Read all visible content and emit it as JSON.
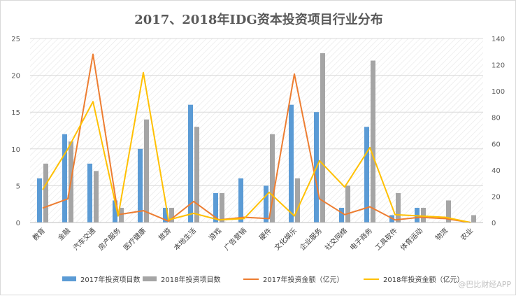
{
  "chart_data": {
    "type": "bar",
    "title": "2017、2018年IDG资本投资项目行业分布",
    "categories": [
      "教育",
      "金融",
      "汽车交通",
      "房产服务",
      "医疗健康",
      "旅游",
      "本地生活",
      "游戏",
      "广告营销",
      "硬件",
      "文化娱乐",
      "企业服务",
      "社交网络",
      "电子商务",
      "工具软件",
      "体育运动",
      "物流",
      "农业"
    ],
    "y_left": {
      "min": 0,
      "max": 25,
      "ticks": [
        "0",
        "5",
        "10",
        "15",
        "20",
        "25"
      ]
    },
    "y_right": {
      "min": 0,
      "max": 140,
      "ticks": [
        "0",
        "20",
        "40",
        "60",
        "80",
        "100",
        "120",
        "140"
      ]
    },
    "series": [
      {
        "name": "2017年投资项目数",
        "kind": "bar",
        "axis": "left",
        "color": "#5b9bd5",
        "values": [
          6,
          12,
          8,
          3,
          10,
          2,
          16,
          4,
          6,
          5,
          16,
          15,
          2,
          13,
          1,
          2,
          0,
          0
        ]
      },
      {
        "name": "2018年投资项目数",
        "kind": "bar",
        "axis": "left",
        "color": "#a5a5a5",
        "values": [
          8,
          11,
          7,
          2,
          14,
          2,
          13,
          4,
          0,
          12,
          6,
          23,
          5,
          22,
          4,
          2,
          3,
          1
        ]
      },
      {
        "name": "2017年投资金额（亿元）",
        "kind": "line",
        "axis": "right",
        "color": "#ed7d31",
        "values": [
          11,
          18,
          128,
          6,
          9,
          1,
          16,
          2,
          4,
          3,
          113,
          18,
          6,
          12,
          2,
          4,
          3,
          0
        ]
      },
      {
        "name": "2018年投资金额（亿元）",
        "kind": "line",
        "axis": "right",
        "color": "#ffc000",
        "values": [
          25,
          56,
          92,
          5,
          114,
          2,
          7,
          2,
          3,
          23,
          5,
          47,
          27,
          57,
          6,
          5,
          4,
          0
        ]
      }
    ],
    "grid": true,
    "legend_position": "bottom"
  },
  "watermark": "@巴比财经APP"
}
